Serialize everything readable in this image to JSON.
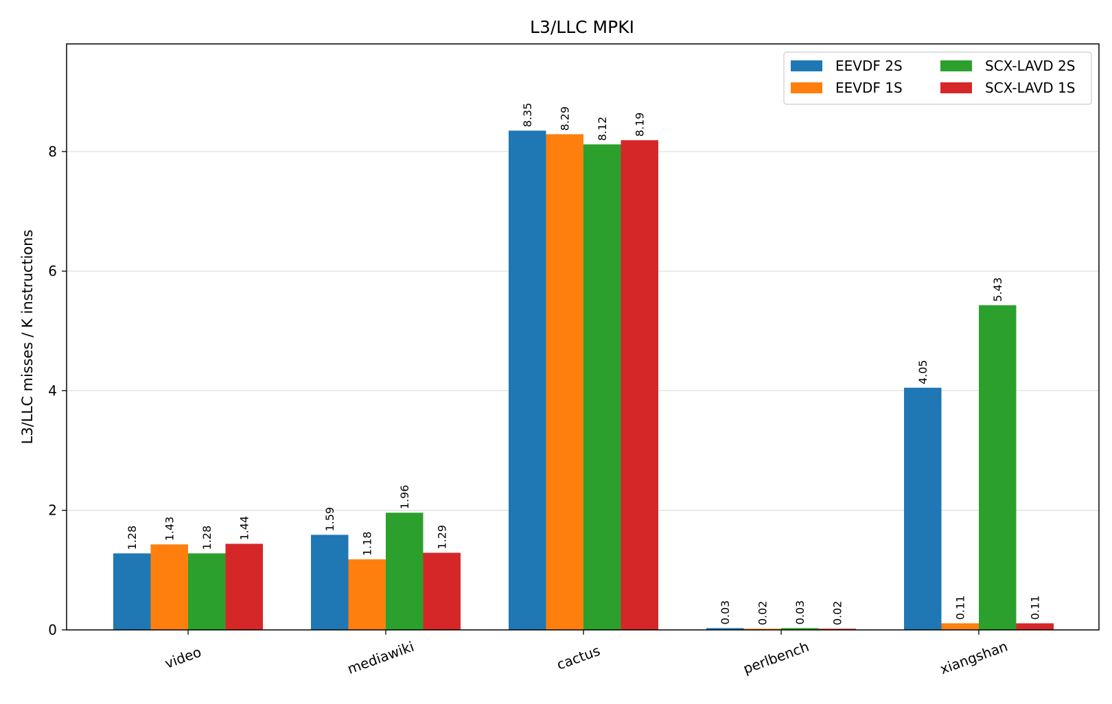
{
  "chart_data": {
    "type": "bar",
    "title": "L3/LLC MPKI",
    "xlabel": "",
    "ylabel": "L3/LLC misses / K instructions",
    "ylim": [
      0,
      9.8
    ],
    "yticks": [
      0,
      2,
      4,
      6,
      8
    ],
    "grid": "y",
    "legend": "top-right",
    "categories": [
      "video",
      "mediawiki",
      "cactus",
      "perlbench",
      "xiangshan"
    ],
    "series": [
      {
        "name": "EEVDF 2S",
        "color": "#1f77b4",
        "values": [
          1.28,
          1.59,
          8.35,
          0.03,
          4.05
        ]
      },
      {
        "name": "EEVDF 1S",
        "color": "#ff7f0e",
        "values": [
          1.43,
          1.18,
          8.29,
          0.02,
          0.11
        ]
      },
      {
        "name": "SCX-LAVD 2S",
        "color": "#2ca02c",
        "values": [
          1.28,
          1.96,
          8.12,
          0.03,
          5.43
        ]
      },
      {
        "name": "SCX-LAVD 1S",
        "color": "#d62728",
        "values": [
          1.44,
          1.29,
          8.19,
          0.02,
          0.11
        ]
      }
    ]
  }
}
